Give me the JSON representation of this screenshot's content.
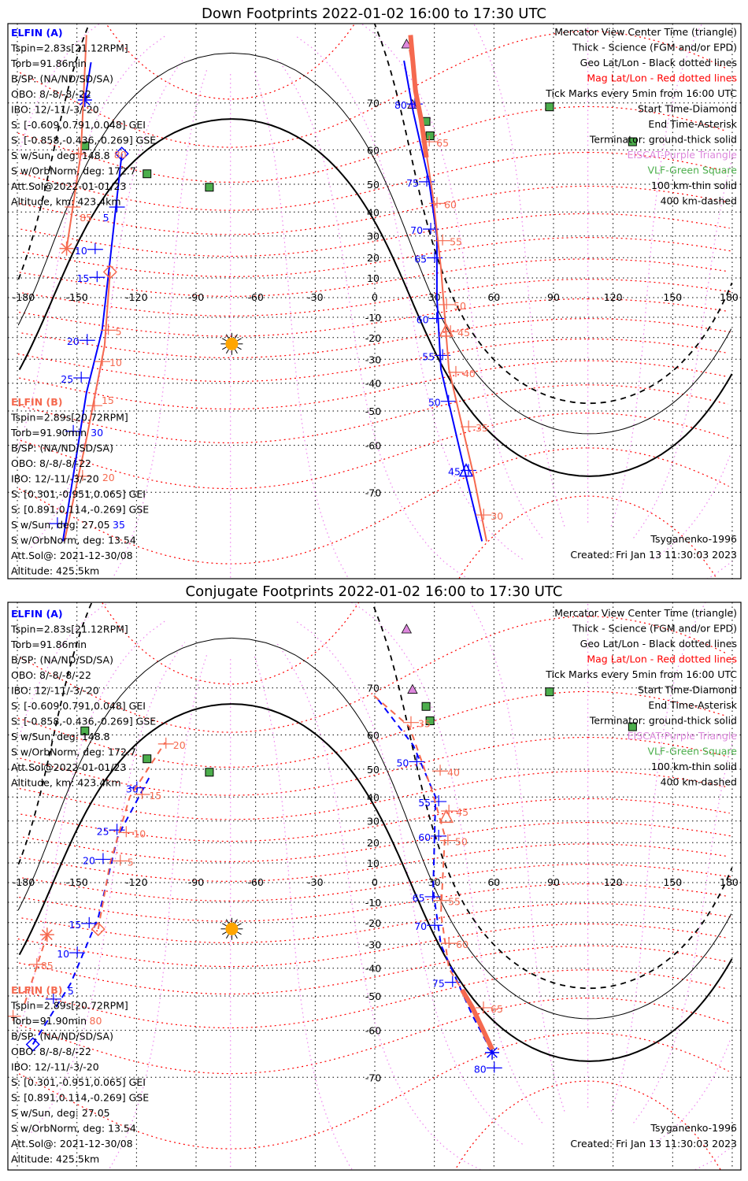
{
  "colors": {
    "elfin_a": "#0000ff",
    "elfin_b": "#f5694f",
    "geo_grid": "#000000",
    "mag_lat": "#ff0000",
    "mag_lon": "#ee82ee",
    "vlf": "#4cae4c",
    "eiscat": "#dd88dd",
    "sun": "#ffa500"
  },
  "elfin_a": {
    "name": "ELFIN (A)",
    "lines": [
      "Tspin=2.83s[21.12RPM]",
      "Torb=91.86min",
      "B/SP: (NA/ND/SD/SA)",
      "OBO: 8/-8/-8/-22",
      "IBO: 12/-11/-3/-20",
      "S: [-0.609,0.791,0.048] GEI",
      "S: [-0.858,-0.436,-0.269] GSE",
      "S w/Sun, deg: 148.8",
      "S w/OrbNorm, deg: 172.7",
      "Att.Sol@2022-01-01/23",
      "Altitude, km: 423.4km"
    ]
  },
  "elfin_b": {
    "name": "ELFIN (B)",
    "lines": [
      "Tspin=2.89s[20.72RPM]",
      "Torb=91.90min",
      "B/SP: (NA/ND/SD/SA)",
      "OBO: 8/-8/-8/-22",
      "IBO: 12/-11/-3/-20",
      "S: [0.301,-0.951,0.065] GEI",
      "S: [0.891,0.114,-0.269] GSE",
      "S w/Sun, deg: 27.05",
      "S w/OrbNorm, deg: 13.54",
      "Att.Sol@: 2021-12-30/08",
      "Altitude: 425.5km"
    ]
  },
  "legend": [
    {
      "text": "Mercator View Center Time (triangle)",
      "color": "#000000"
    },
    {
      "text": "Thick - Science (FGM and/or EPD)",
      "color": "#000000"
    },
    {
      "text": "Geo Lat/Lon - Black dotted lines",
      "color": "#000000"
    },
    {
      "text": "Mag Lat/Lon - Red dotted lines",
      "color": "#ff0000"
    },
    {
      "text": "Tick Marks every 5min from 16:00 UTC",
      "color": "#000000"
    },
    {
      "text": "Start Time-Diamond",
      "color": "#000000"
    },
    {
      "text": "End Time-Asterisk",
      "color": "#000000"
    },
    {
      "text": "Terminator: ground-thick solid",
      "color": "#000000"
    },
    {
      "text": "EISCAT-Purple Triangle",
      "color": "#dd88dd"
    },
    {
      "text": "VLF-Green Square",
      "color": "#4cae4c"
    },
    {
      "text": "100 km-thin solid",
      "color": "#000000"
    },
    {
      "text": "400 km-dashed",
      "color": "#000000"
    }
  ],
  "model": "Tsyganenko-1996",
  "created": "Created: Fri Jan 13 11:30:03 2023",
  "lon_labels": [
    "-180",
    "-150",
    "-120",
    "-90",
    "-60",
    "-30",
    "0",
    "30",
    "60",
    "90",
    "120",
    "150",
    "180"
  ],
  "lat_labels": [
    "70",
    "60",
    "50",
    "40",
    "30",
    "20",
    "10",
    "0",
    "-10",
    "-20",
    "-30",
    "-40",
    "-50",
    "-60",
    "-70"
  ],
  "subsolar": [
    -72,
    -23
  ],
  "terminator_altitudes_km": [
    0,
    100,
    400
  ],
  "sites": {
    "eiscat": [
      [
        16,
        78
      ],
      [
        19,
        69.6
      ]
    ],
    "vlf": [
      [
        -146,
        61
      ],
      [
        -114.7,
        53.3
      ],
      [
        -83.3,
        49
      ],
      [
        25.8,
        66.5
      ],
      [
        27.8,
        63.4
      ],
      [
        88,
        69.3
      ],
      [
        129.8,
        62
      ]
    ]
  },
  "panels": [
    {
      "title": "Down Footprints 2022-01-02 16:00 to 17:30 UTC",
      "tracks": [
        {
          "sat": "a",
          "style": "solid",
          "segments": [
            [
              [
                -142.9,
                76
              ],
              [
                -146,
                70.5
              ]
            ],
            [
              [
                -127.4,
                59
              ],
              [
                -133.3,
                18.8
              ],
              [
                -137.3,
                -16.4
              ],
              [
                -145.2,
                -43.6
              ],
              [
                -157.1,
                -77
              ]
            ],
            [
              [
                14.7,
                76.2
              ],
              [
                19.4,
                68.3
              ],
              [
                27.4,
                50.6
              ],
              [
                31.3,
                29.6
              ],
              [
                31.3,
                0
              ],
              [
                33.3,
                -34.3
              ],
              [
                45.2,
                -65.8
              ],
              [
                54,
                -77
              ]
            ]
          ],
          "thick": [],
          "labels": [
            {
              "text": "5",
              "pos": [
                -133,
                41.9
              ]
            },
            {
              "text": "10",
              "pos": [
                -144,
                23.9
              ]
            },
            {
              "text": "15",
              "pos": [
                -143,
                10.3
              ]
            },
            {
              "text": "20",
              "pos": [
                -148,
                -21.3
              ]
            },
            {
              "text": "25",
              "pos": [
                -151,
                -37.9
              ]
            },
            {
              "text": "30",
              "pos": [
                -155,
                -56.2
              ]
            },
            {
              "text": "35",
              "pos": [
                -163,
                -74.8
              ]
            },
            {
              "text": "45",
              "pos": [
                44,
                -65.8
              ]
            },
            {
              "text": "50",
              "pos": [
                34,
                -46.7
              ]
            },
            {
              "text": "55",
              "pos": [
                31,
                -28.3
              ]
            },
            {
              "text": "60",
              "pos": [
                28,
                -10.6
              ]
            },
            {
              "text": "65",
              "pos": [
                27,
                19.9
              ]
            },
            {
              "text": "70",
              "pos": [
                25,
                33
              ]
            },
            {
              "text": "75",
              "pos": [
                23,
                50.8
              ]
            },
            {
              "text": "80",
              "pos": [
                17,
                69.8
              ]
            }
          ],
          "start": [
            -127.4,
            59
          ],
          "end": [
            -146,
            70.5
          ],
          "center": [
            46,
            -66
          ]
        },
        {
          "sat": "b",
          "style": "solid",
          "segments": [
            [
              [
                -145.2,
                79
              ],
              [
                -148,
                59
              ],
              [
                -155.2,
                24.3
              ]
            ],
            [
              [
                -133.3,
                13
              ],
              [
                -136.1,
                -23.9
              ],
              [
                -145.2,
                -58.3
              ],
              [
                -156.3,
                -77
              ]
            ],
            [
              [
                17.5,
                77.5
              ],
              [
                23.4,
                66.8
              ],
              [
                29.4,
                45.3
              ],
              [
                33.3,
                15
              ],
              [
                37.3,
                -34.3
              ],
              [
                49.2,
                -65.8
              ],
              [
                56.3,
                -77
              ]
            ]
          ],
          "thick": [
            [
              [
                18,
                79
              ],
              [
                20.5,
                72
              ],
              [
                23.4,
                66.8
              ],
              [
                26,
                58
              ]
            ]
          ],
          "labels": [
            {
              "text": "80",
              "pos": [
                -146,
                59
              ]
            },
            {
              "text": "85",
              "pos": [
                -149,
                41.9
              ]
            },
            {
              "text": "5",
              "pos": [
                -131,
                -16.4
              ]
            },
            {
              "text": "10",
              "pos": [
                -134,
                -31
              ]
            },
            {
              "text": "15",
              "pos": [
                -138,
                -48.2
              ]
            },
            {
              "text": "20",
              "pos": [
                -144,
                -67
              ]
            },
            {
              "text": "30",
              "pos": [
                58,
                -73.6
              ]
            },
            {
              "text": "35",
              "pos": [
                50.4,
                -54.9
              ]
            },
            {
              "text": "40",
              "pos": [
                44,
                -35.6
              ]
            },
            {
              "text": "45",
              "pos": [
                41.3,
                -17.1
              ]
            },
            {
              "text": "50",
              "pos": [
                39.3,
                -3.6
              ]
            },
            {
              "text": "55",
              "pos": [
                37.3,
                27.9
              ]
            },
            {
              "text": "60",
              "pos": [
                34.5,
                43.3
              ]
            },
            {
              "text": "65",
              "pos": [
                30.6,
                62
              ]
            }
          ],
          "start": [
            -133.3,
            13
          ],
          "end": [
            -155.2,
            24.3
          ],
          "center": [
            36,
            -17
          ]
        }
      ]
    },
    {
      "title": "Conjugate Footprints 2022-01-02 16:00 to 17:30 UTC",
      "tracks": [
        {
          "sat": "a",
          "style": "dashed",
          "segments": [
            [
              [
                -172.2,
                -63.4
              ],
              [
                -153.2,
                -45.8
              ],
              [
                -139.3,
                -17.7
              ],
              [
                -129.4,
                23.1
              ],
              [
                -113.5,
                47.3
              ]
            ],
            [
              [
                1.6,
                67.9
              ],
              [
                19.4,
                57.2
              ],
              [
                30.6,
                40
              ],
              [
                29.4,
                -4
              ],
              [
                33.3,
                -30.3
              ],
              [
                49.2,
                -56
              ],
              [
                59.1,
                -65.2
              ]
            ]
          ],
          "thick": [],
          "labels": [
            {
              "text": "5",
              "pos": [
                -165,
                -51
              ]
            },
            {
              "text": "10",
              "pos": [
                -153,
                -33.7
              ]
            },
            {
              "text": "15",
              "pos": [
                -147,
                -20.4
              ]
            },
            {
              "text": "20",
              "pos": [
                -140,
                11.8
              ]
            },
            {
              "text": "25",
              "pos": [
                -133,
                25.9
              ]
            },
            {
              "text": "30",
              "pos": [
                -123,
                43.5
              ]
            },
            {
              "text": "50",
              "pos": [
                18,
                52.4
              ]
            },
            {
              "text": "55",
              "pos": [
                29,
                38.2
              ]
            },
            {
              "text": "60",
              "pos": [
                29,
                23.1
              ]
            },
            {
              "text": "65",
              "pos": [
                26,
                -7.2
              ]
            },
            {
              "text": "70",
              "pos": [
                27,
                -21.3
              ]
            },
            {
              "text": "75",
              "pos": [
                36,
                -45.3
              ]
            },
            {
              "text": "80",
              "pos": [
                57,
                -68.3
              ]
            }
          ],
          "start": [
            -172.2,
            -63.4
          ],
          "end": [
            59.1,
            -65.2
          ],
          "center": null
        },
        {
          "sat": "b",
          "style": "dashed",
          "segments": [
            [
              [
                -165,
                -25.7
              ],
              [
                -177,
                -53.7
              ]
            ],
            [
              [
                -139.3,
                -23.1
              ],
              [
                -133.3,
                9.9
              ],
              [
                -123.4,
                40
              ],
              [
                -105.6,
                58
              ]
            ],
            [
              [
                -0.4,
                68.6
              ],
              [
                17.5,
                62
              ],
              [
                28.6,
                43
              ],
              [
                35.3,
                23.1
              ],
              [
                33.3,
                -15.5
              ],
              [
                37.3,
                -40
              ],
              [
                49.2,
                -53.7
              ],
              [
                59.1,
                -64.5
              ]
            ]
          ],
          "thick": [
            [
              [
                44,
                -48
              ],
              [
                49.2,
                -53.7
              ],
              [
                59.1,
                -64.5
              ]
            ]
          ],
          "labels": [
            {
              "text": "85",
              "pos": [
                -167,
                -38.5
              ]
            },
            {
              "text": "80",
              "pos": [
                -179,
                -56.2
              ]
            },
            {
              "text": "5",
              "pos": [
                -125,
                11
              ]
            },
            {
              "text": "10",
              "pos": [
                -122,
                24.8
              ]
            },
            {
              "text": "15",
              "pos": [
                -114,
                41
              ]
            },
            {
              "text": "20",
              "pos": [
                -102,
                57.6
              ]
            },
            {
              "text": "35",
              "pos": [
                21.4,
                63
              ]
            },
            {
              "text": "40",
              "pos": [
                36.1,
                49.4
              ]
            },
            {
              "text": "45",
              "pos": [
                40.5,
                34.3
              ]
            },
            {
              "text": "50",
              "pos": [
                40,
                21
              ]
            },
            {
              "text": "55",
              "pos": [
                36.5,
                -9.1
              ]
            },
            {
              "text": "60",
              "pos": [
                40.5,
                -29.6
              ]
            },
            {
              "text": "65",
              "pos": [
                57.9,
                -53.7
              ]
            }
          ],
          "start": [
            -139.3,
            -23.1
          ],
          "end": [
            -165,
            -25.7
          ],
          "center": [
            36,
            31.5
          ]
        }
      ]
    }
  ]
}
